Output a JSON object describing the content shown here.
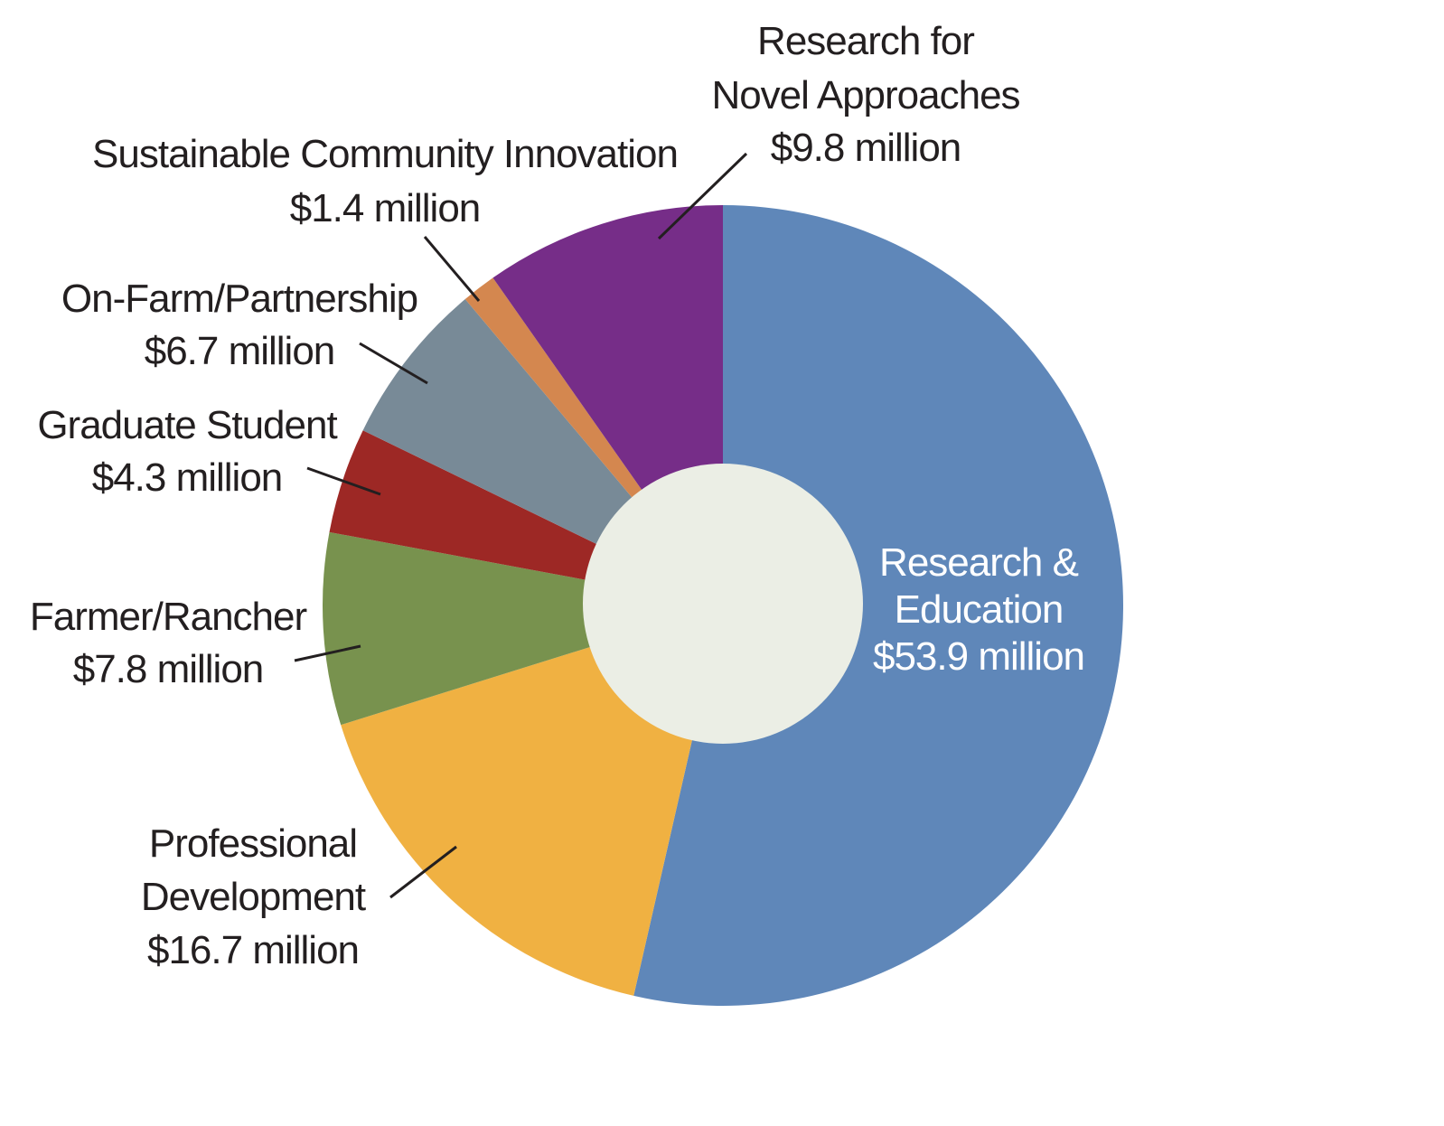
{
  "chart_data": {
    "type": "pie",
    "variant": "donut",
    "start_angle": "12 o'clock",
    "direction": "clockwise",
    "units": "million USD",
    "slices": [
      {
        "label_lines": [
          "Research &",
          "Education",
          "$53.9 million"
        ],
        "name": "Research & Education",
        "value": 53.9,
        "color": "#5f87b9",
        "label_inside": true
      },
      {
        "label_lines": [
          "Professional",
          "Development",
          "$16.7 million"
        ],
        "name": "Professional Development",
        "value": 16.7,
        "color": "#f0b142"
      },
      {
        "label_lines": [
          "Farmer/Rancher",
          "$7.8 million"
        ],
        "name": "Farmer/Rancher",
        "value": 7.8,
        "color": "#78924e"
      },
      {
        "label_lines": [
          "Graduate Student",
          "$4.3 million"
        ],
        "name": "Graduate Student",
        "value": 4.3,
        "color": "#9d2825"
      },
      {
        "label_lines": [
          "On-Farm/Partnership",
          "$6.7 million"
        ],
        "name": "On-Farm/Partnership",
        "value": 6.7,
        "color": "#788a97"
      },
      {
        "label_lines": [
          "Sustainable Community Innovation",
          "$1.4 million"
        ],
        "name": "Sustainable Community Innovation",
        "value": 1.4,
        "color": "#d4874f"
      },
      {
        "label_lines": [
          "Research for",
          "Novel Approaches",
          "$9.8 million"
        ],
        "name": "Research for Novel Approaches",
        "value": 9.8,
        "color": "#762d88"
      }
    ],
    "hole_color": "#ebeee5"
  }
}
